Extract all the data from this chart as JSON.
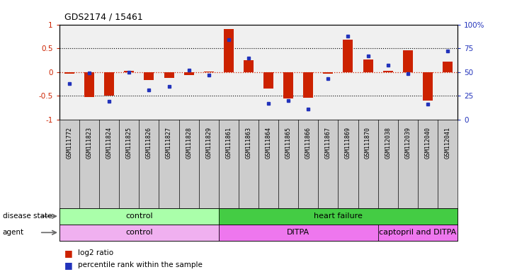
{
  "title": "GDS2174 / 15461",
  "samples": [
    "GSM111772",
    "GSM111823",
    "GSM111824",
    "GSM111825",
    "GSM111826",
    "GSM111827",
    "GSM111828",
    "GSM111829",
    "GSM111861",
    "GSM111863",
    "GSM111864",
    "GSM111865",
    "GSM111866",
    "GSM111867",
    "GSM111869",
    "GSM111870",
    "GSM112038",
    "GSM112039",
    "GSM112040",
    "GSM112041"
  ],
  "log2_ratio": [
    -0.03,
    -0.52,
    -0.49,
    0.03,
    -0.17,
    -0.12,
    -0.07,
    0.01,
    0.9,
    0.25,
    -0.35,
    -0.56,
    -0.54,
    -0.04,
    0.68,
    0.27,
    0.02,
    0.46,
    -0.6,
    0.22
  ],
  "percentile_rank": [
    38,
    49,
    19,
    50,
    31,
    35,
    52,
    47,
    84,
    65,
    17,
    20,
    11,
    43,
    88,
    67,
    57,
    48,
    16,
    72
  ],
  "disease_state_regions": [
    {
      "label": "control",
      "start": 0,
      "end": 8,
      "color": "#aaffaa"
    },
    {
      "label": "heart failure",
      "start": 8,
      "end": 20,
      "color": "#44cc44"
    }
  ],
  "agent_regions": [
    {
      "label": "control",
      "start": 0,
      "end": 8,
      "color": "#f0b0f0"
    },
    {
      "label": "DITPA",
      "start": 8,
      "end": 16,
      "color": "#ee77ee"
    },
    {
      "label": "captopril and DITPA",
      "start": 16,
      "end": 20,
      "color": "#ee77ee"
    }
  ],
  "bar_color": "#cc2200",
  "dot_color": "#2233bb",
  "plot_bg": "#f0f0f0",
  "label_bg": "#cccccc",
  "ylim_left": [
    -1,
    1
  ],
  "ylim_right": [
    0,
    100
  ],
  "yticks_left": [
    -1,
    -0.5,
    0,
    0.5,
    1
  ],
  "yticks_right": [
    0,
    25,
    50,
    75,
    100
  ],
  "ytick_labels_left": [
    "-1",
    "-0.5",
    "0",
    "0.5",
    "1"
  ],
  "ytick_labels_right": [
    "0",
    "25",
    "50",
    "75",
    "100%"
  ],
  "bar_width": 0.5
}
